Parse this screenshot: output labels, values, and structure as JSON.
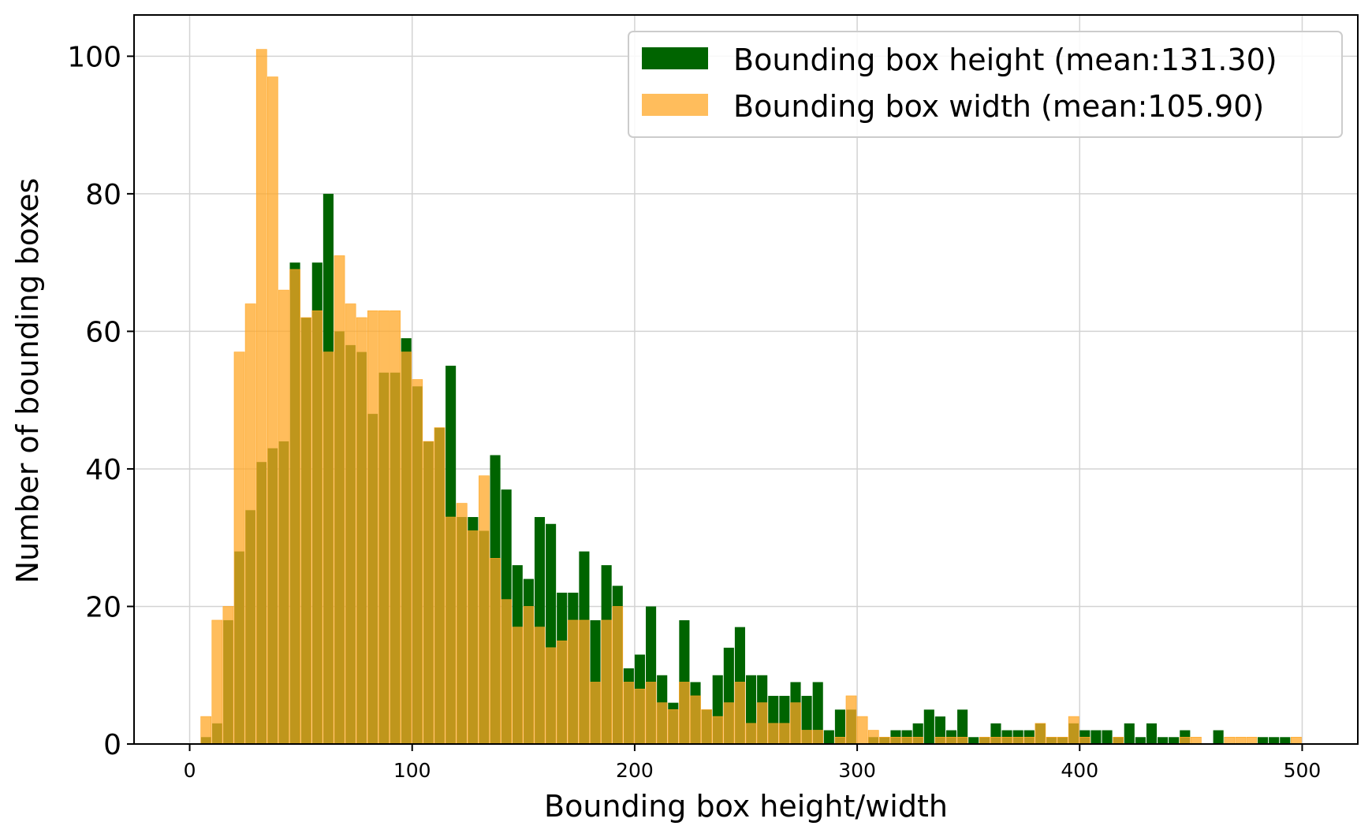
{
  "chart_data": {
    "type": "bar",
    "title": "",
    "xlabel": "Bounding box height/width",
    "ylabel": "Number of bounding boxes",
    "xlim": [
      -25,
      525
    ],
    "ylim": [
      0,
      106
    ],
    "xticks": [
      "0",
      "100",
      "200",
      "300",
      "400",
      "500"
    ],
    "yticks": [
      "0",
      "20",
      "40",
      "60",
      "80",
      "100"
    ],
    "grid": true,
    "legend_position": "top-right",
    "bin_width": 5,
    "x": [
      5,
      10,
      15,
      20,
      25,
      30,
      35,
      40,
      45,
      50,
      55,
      60,
      65,
      70,
      75,
      80,
      85,
      90,
      95,
      100,
      105,
      110,
      115,
      120,
      125,
      130,
      135,
      140,
      145,
      150,
      155,
      160,
      165,
      170,
      175,
      180,
      185,
      190,
      195,
      200,
      205,
      210,
      215,
      220,
      225,
      230,
      235,
      240,
      245,
      250,
      255,
      260,
      265,
      270,
      275,
      280,
      285,
      290,
      295,
      300,
      305,
      310,
      315,
      320,
      325,
      330,
      335,
      340,
      345,
      350,
      355,
      360,
      365,
      370,
      375,
      380,
      385,
      390,
      395,
      400,
      405,
      410,
      415,
      420,
      425,
      430,
      435,
      440,
      445,
      450,
      455,
      460,
      465,
      470,
      475,
      480,
      485,
      490,
      495
    ],
    "series": [
      {
        "name": "Bounding box height (mean:131.30)",
        "color": "#006400",
        "values": [
          1,
          3,
          18,
          28,
          34,
          41,
          43,
          44,
          70,
          62,
          70,
          80,
          60,
          58,
          57,
          48,
          54,
          54,
          59,
          52,
          44,
          46,
          55,
          33,
          33,
          31,
          42,
          37,
          26,
          24,
          33,
          32,
          22,
          22,
          28,
          18,
          26,
          23,
          11,
          13,
          20,
          10,
          6,
          18,
          9,
          5,
          10,
          14,
          17,
          10,
          10,
          7,
          7,
          9,
          7,
          9,
          2,
          5,
          5,
          0,
          1,
          1,
          2,
          2,
          3,
          5,
          4,
          2,
          5,
          1,
          1,
          3,
          2,
          2,
          2,
          3,
          1,
          1,
          3,
          2,
          2,
          2,
          1,
          3,
          1,
          3,
          1,
          1,
          2,
          0,
          0,
          2,
          0,
          0,
          0,
          1,
          1,
          1,
          0
        ]
      },
      {
        "name": "Bounding box width (mean:105.90)",
        "color": "#FFA726",
        "values": [
          4,
          18,
          20,
          57,
          64,
          101,
          97,
          66,
          69,
          62,
          63,
          57,
          71,
          64,
          62,
          63,
          63,
          63,
          57,
          53,
          44,
          46,
          33,
          35,
          31,
          39,
          27,
          21,
          17,
          20,
          17,
          14,
          15,
          18,
          18,
          9,
          18,
          20,
          9,
          8,
          9,
          6,
          5,
          9,
          7,
          5,
          4,
          6,
          9,
          3,
          6,
          3,
          3,
          6,
          2,
          2,
          0,
          1,
          7,
          4,
          2,
          1,
          1,
          1,
          1,
          0,
          1,
          1,
          1,
          0,
          1,
          1,
          1,
          1,
          1,
          3,
          1,
          1,
          4,
          1,
          0,
          0,
          1,
          0,
          0,
          0,
          0,
          0,
          1,
          1,
          0,
          0,
          1,
          1,
          1,
          0,
          0,
          0,
          1
        ]
      }
    ]
  }
}
